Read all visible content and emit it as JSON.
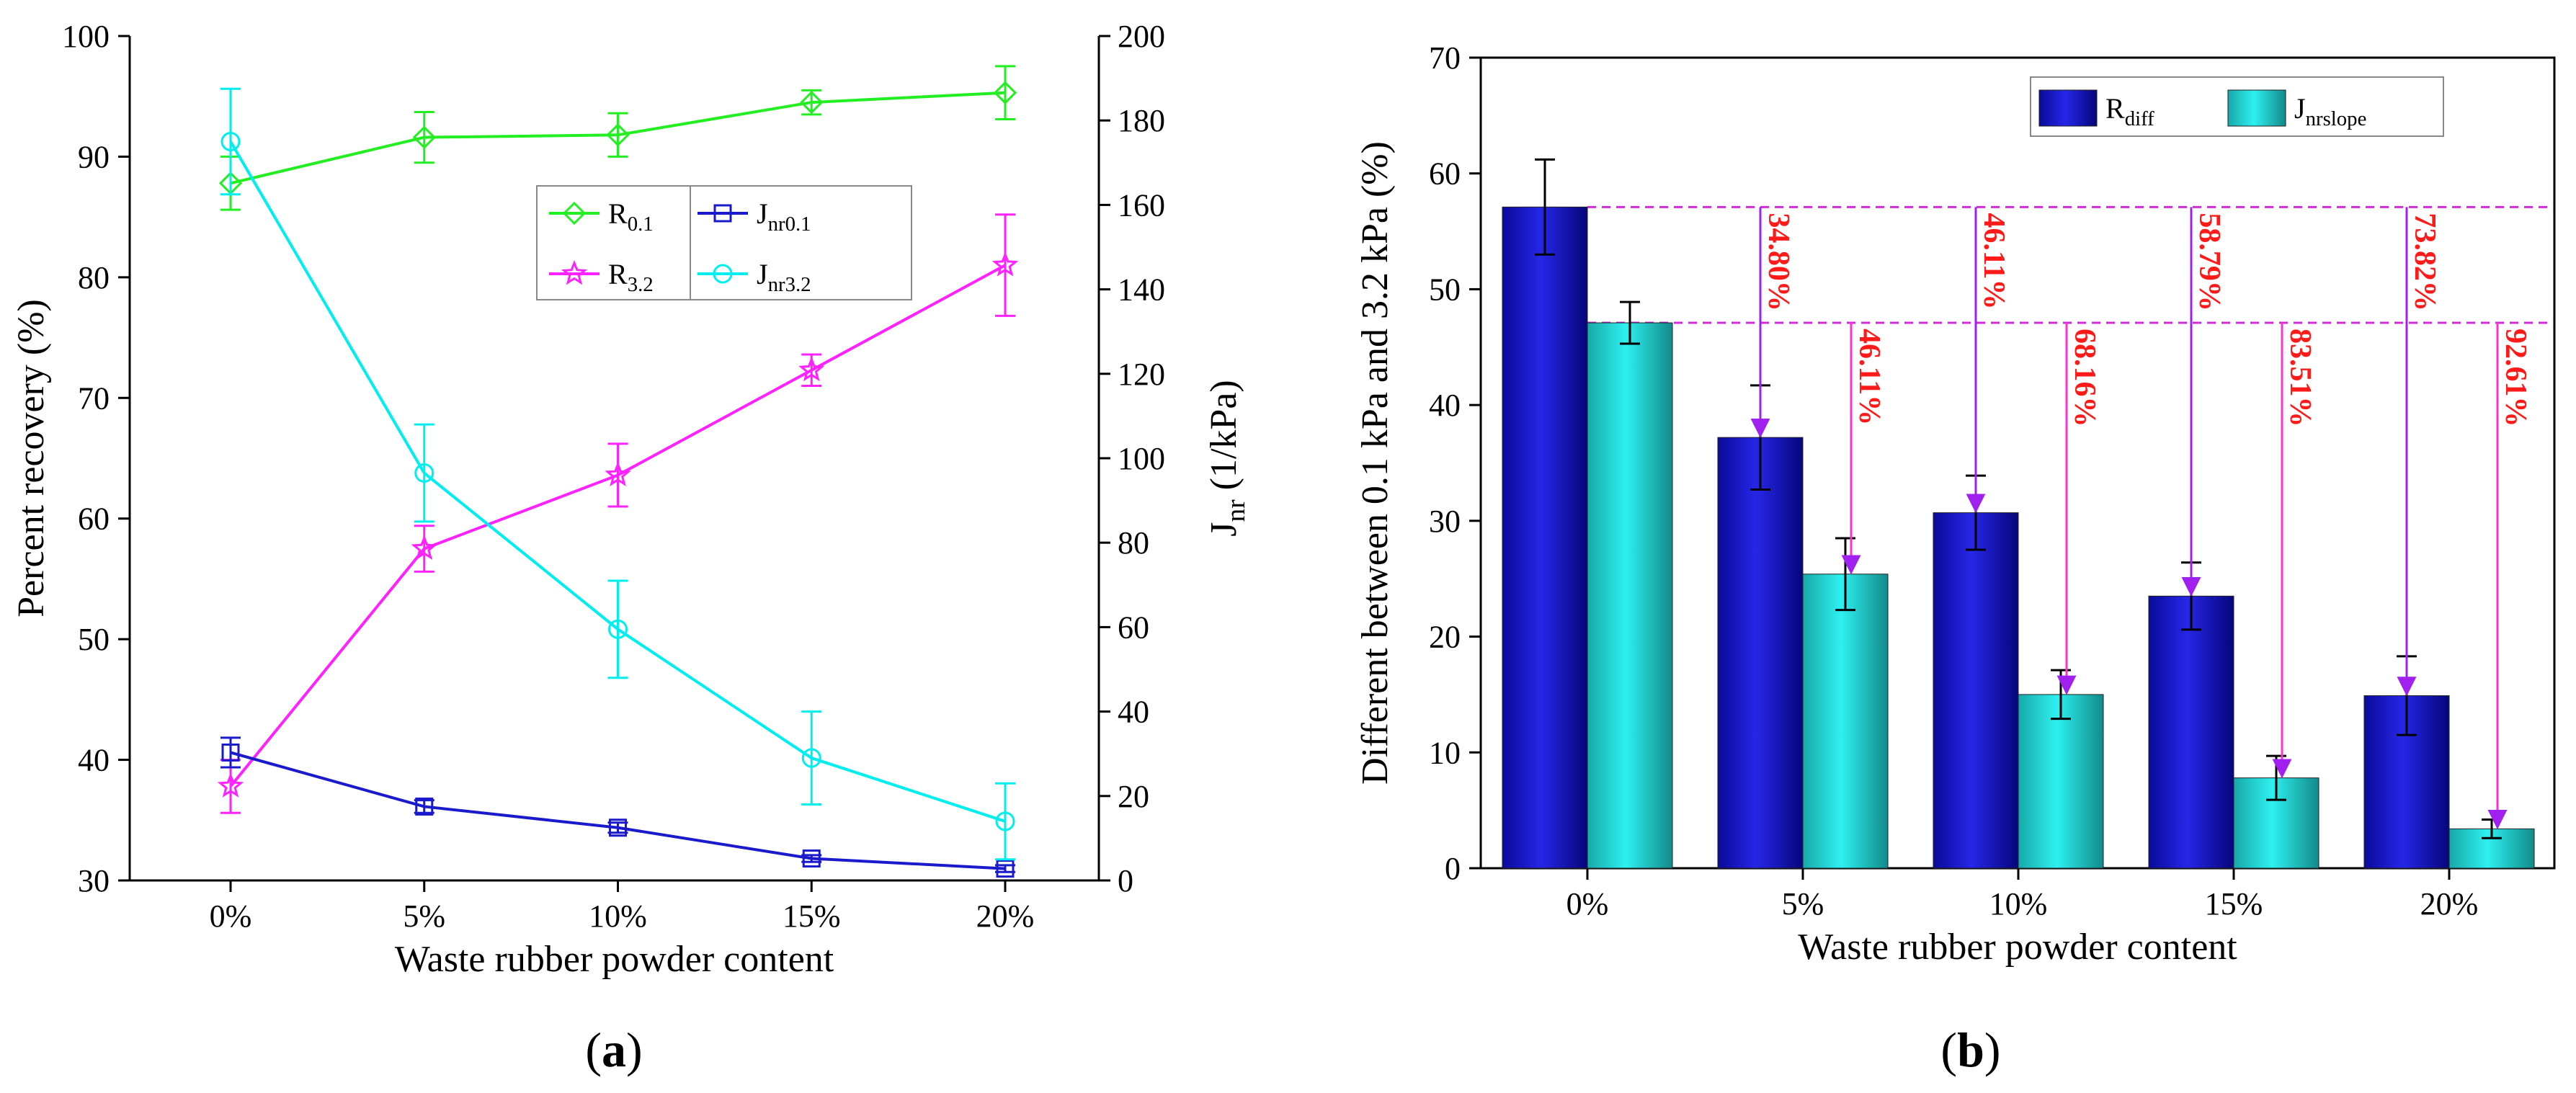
{
  "chart_data": [
    {
      "type": "line",
      "panel_label": "a",
      "xlabel": "Waste rubber powder content",
      "ylabel": "Percent recovery (%)",
      "y2label_main": "J",
      "y2label_sub": "nr",
      "y2label_unit": " (1/kPa)",
      "categories": [
        "0%",
        "5%",
        "10%",
        "15%",
        "20%"
      ],
      "ylim": [
        30,
        100
      ],
      "yticks": [
        30,
        40,
        50,
        60,
        70,
        80,
        90,
        100
      ],
      "y2lim": [
        0,
        200
      ],
      "y2ticks": [
        0,
        20,
        40,
        60,
        80,
        100,
        120,
        140,
        160,
        180,
        200
      ],
      "legend_position": "center-right",
      "series": [
        {
          "name": "R",
          "sub": "0.1",
          "axis": "left",
          "color": "#22ee22",
          "marker": "diamond",
          "values": [
            87.8,
            91.6,
            91.8,
            94.5,
            95.3
          ],
          "errors": [
            2.2,
            2.1,
            1.8,
            1.0,
            2.2
          ]
        },
        {
          "name": "R",
          "sub": "3.2",
          "axis": "left",
          "color": "#ff22ff",
          "marker": "star",
          "values": [
            37.8,
            57.5,
            63.6,
            72.3,
            81.0
          ],
          "errors": [
            2.2,
            1.9,
            2.6,
            1.3,
            4.2
          ]
        },
        {
          "name": "J",
          "sub": "nr0.1",
          "axis": "right",
          "color": "#1a1acc",
          "marker": "square",
          "values": [
            30.3,
            17.5,
            12.5,
            5.2,
            2.8
          ],
          "errors": [
            3.5,
            1.5,
            1.2,
            0.8,
            0.8
          ]
        },
        {
          "name": "J",
          "sub": "nr3.2",
          "axis": "right",
          "color": "#00eeee",
          "marker": "circle",
          "values": [
            175.0,
            96.5,
            59.5,
            29.0,
            14.0
          ],
          "errors": [
            12.5,
            11.5,
            11.5,
            11.0,
            9.0
          ]
        }
      ]
    },
    {
      "type": "bar",
      "panel_label": "b",
      "xlabel": "Waste rubber powder content",
      "ylabel": "Different between 0.1 kPa and 3.2 kPa (%)",
      "categories": [
        "0%",
        "5%",
        "10%",
        "15%",
        "20%"
      ],
      "ylim": [
        0,
        70
      ],
      "yticks": [
        0,
        10,
        20,
        30,
        40,
        50,
        60,
        70
      ],
      "legend_position": "top-right",
      "series": [
        {
          "name": "R",
          "sub": "diff",
          "color": "#1414c8",
          "values": [
            57.1,
            37.2,
            30.7,
            23.5,
            14.9
          ],
          "errors": [
            4.1,
            4.5,
            3.2,
            2.9,
            3.4
          ]
        },
        {
          "name": "J",
          "sub": "nrslope",
          "color": "#22c8c8",
          "values": [
            47.1,
            25.4,
            15.0,
            7.8,
            3.4
          ],
          "errors": [
            1.8,
            3.1,
            2.1,
            1.9,
            0.8
          ]
        }
      ],
      "reduction_labels": {
        "Rdiff": [
          "34.80%",
          "46.11%",
          "58.79%",
          "73.82%"
        ],
        "Jnrslope": [
          "46.11%",
          "68.16%",
          "83.51%",
          "92.61%"
        ]
      },
      "reference_lines": [
        57.1,
        47.1
      ]
    }
  ]
}
